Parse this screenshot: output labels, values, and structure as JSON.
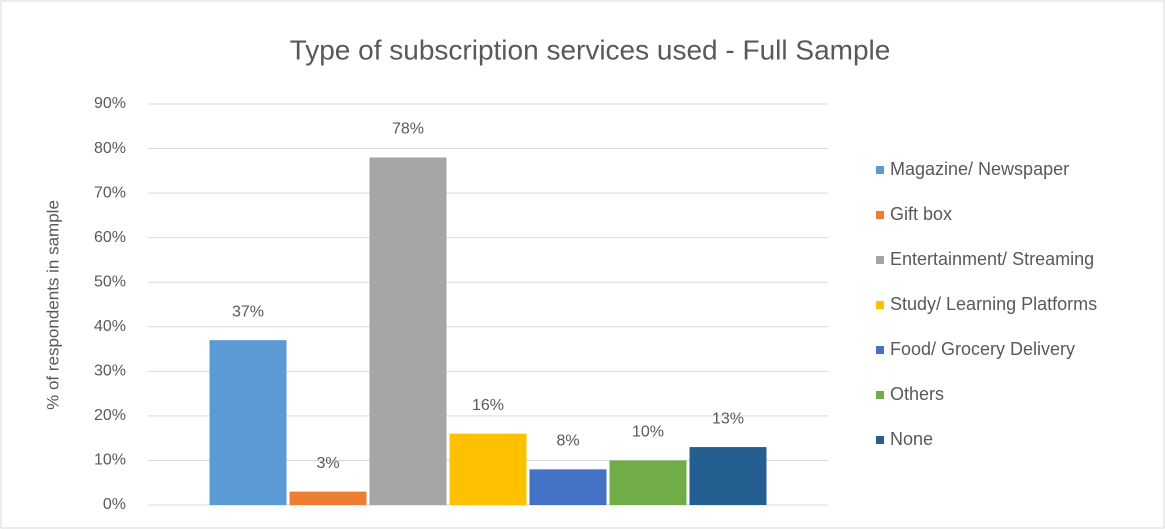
{
  "chart_data": {
    "type": "bar",
    "title": "Type of subscription services used - Full Sample",
    "y_label": "% of respondents in sample",
    "series": [
      {
        "name": "Magazine/ Newspaper",
        "color": "#5b9bd5",
        "values": [
          37
        ],
        "value_labels": [
          "37%"
        ]
      },
      {
        "name": "Gift box",
        "color": "#ed7d31",
        "values": [
          3
        ],
        "value_labels": [
          "3%"
        ]
      },
      {
        "name": "Entertainment/ Streaming",
        "color": "#a5a5a5",
        "values": [
          78
        ],
        "value_labels": [
          "78%"
        ]
      },
      {
        "name": "Study/ Learning Platforms",
        "color": "#ffc000",
        "values": [
          16
        ],
        "value_labels": [
          "16%"
        ]
      },
      {
        "name": "Food/ Grocery Delivery",
        "color": "#4472c4",
        "values": [
          8
        ],
        "value_labels": [
          "8%"
        ]
      },
      {
        "name": "Others",
        "color": "#70ad47",
        "values": [
          10
        ],
        "value_labels": [
          "10%"
        ]
      },
      {
        "name": "None",
        "color": "#255e91",
        "values": [
          13
        ],
        "value_labels": [
          "13%"
        ]
      }
    ],
    "ylim": [
      0,
      90
    ],
    "yticks": [
      {
        "value": 0,
        "label": "0%"
      },
      {
        "value": 10,
        "label": "10%"
      },
      {
        "value": 20,
        "label": "20%"
      },
      {
        "value": 30,
        "label": "30%"
      },
      {
        "value": 40,
        "label": "40%"
      },
      {
        "value": 50,
        "label": "50%"
      },
      {
        "value": 60,
        "label": "60%"
      },
      {
        "value": 70,
        "label": "70%"
      },
      {
        "value": 80,
        "label": "80%"
      },
      {
        "value": 90,
        "label": "90%"
      }
    ],
    "grid": true,
    "legend": "right"
  }
}
